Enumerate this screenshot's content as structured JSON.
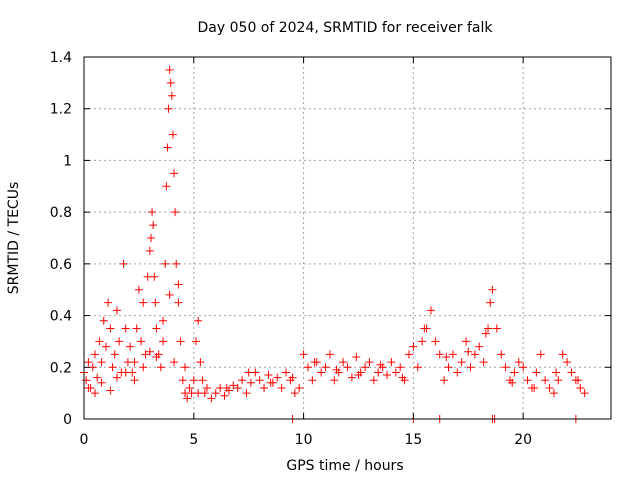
{
  "chart_data": {
    "type": "scatter",
    "title": "Day 050 of 2024, SRMTID for receiver falk",
    "xlabel": "GPS time / hours",
    "ylabel": "SRMTID / TECUs",
    "xlim": [
      0,
      24
    ],
    "ylim": [
      0,
      1.4
    ],
    "x_ticks": [
      0,
      5,
      10,
      15,
      20
    ],
    "x_tick_labels": [
      "0",
      "5",
      "10",
      "15",
      "20"
    ],
    "y_ticks": [
      0,
      0.2,
      0.4,
      0.6,
      0.8,
      1,
      1.2,
      1.4
    ],
    "y_tick_labels": [
      "0",
      "0.2",
      "0.4",
      "0.6",
      "0.8",
      "1",
      "1.2",
      "1.4"
    ],
    "grid": true,
    "marker": "plus",
    "marker_color": "#ff0000",
    "series": [
      {
        "name": "SRMTID",
        "x": [
          0.0,
          0.1,
          0.2,
          0.3,
          0.4,
          0.5,
          0.6,
          0.7,
          0.8,
          0.9,
          1.0,
          1.1,
          1.2,
          1.3,
          1.4,
          1.5,
          1.6,
          1.7,
          1.8,
          1.9,
          2.0,
          2.1,
          2.2,
          2.3,
          2.4,
          2.5,
          2.6,
          2.7,
          2.8,
          2.9,
          3.0,
          3.05,
          3.1,
          3.15,
          3.2,
          3.25,
          3.3,
          3.4,
          3.5,
          3.6,
          3.7,
          3.75,
          3.8,
          3.85,
          3.9,
          3.95,
          4.0,
          4.05,
          4.1,
          4.15,
          4.2,
          4.3,
          4.4,
          4.5,
          4.6,
          4.7,
          4.8,
          4.9,
          5.0,
          5.1,
          5.2,
          5.3,
          5.4,
          5.5,
          5.6,
          5.8,
          6.0,
          6.2,
          6.4,
          6.6,
          6.8,
          7.0,
          7.2,
          7.4,
          7.6,
          7.8,
          8.0,
          8.2,
          8.4,
          8.6,
          8.8,
          9.0,
          9.2,
          9.4,
          9.6,
          9.8,
          10.0,
          10.2,
          10.4,
          10.6,
          10.8,
          11.0,
          11.2,
          11.4,
          11.6,
          11.8,
          12.0,
          12.2,
          12.4,
          12.6,
          12.8,
          13.0,
          13.2,
          13.4,
          13.6,
          13.8,
          14.0,
          14.2,
          14.4,
          14.6,
          14.8,
          15.0,
          15.2,
          15.4,
          15.6,
          15.8,
          16.0,
          16.2,
          16.4,
          16.6,
          16.8,
          17.0,
          17.2,
          17.4,
          17.6,
          17.8,
          18.0,
          18.2,
          18.4,
          18.5,
          18.6,
          18.8,
          19.0,
          19.2,
          19.4,
          19.6,
          19.8,
          20.0,
          20.2,
          20.4,
          20.6,
          20.8,
          21.0,
          21.2,
          21.4,
          21.6,
          21.8,
          22.0,
          22.2,
          22.4,
          22.6,
          22.8,
          0.2,
          0.5,
          0.8,
          1.2,
          1.5,
          1.9,
          2.3,
          2.7,
          3.0,
          3.3,
          3.6,
          3.9,
          4.1,
          4.3,
          4.6,
          5.2,
          6.5,
          7.5,
          8.5,
          9.5,
          10.5,
          11.5,
          12.5,
          13.5,
          14.5,
          15.5,
          16.5,
          17.5,
          18.3,
          19.5,
          20.5,
          21.5,
          22.5,
          9.5,
          15.0,
          16.2,
          18.6,
          18.7,
          22.4
        ],
        "y": [
          0.18,
          0.15,
          0.22,
          0.12,
          0.2,
          0.25,
          0.16,
          0.3,
          0.22,
          0.38,
          0.28,
          0.45,
          0.35,
          0.2,
          0.25,
          0.42,
          0.3,
          0.18,
          0.6,
          0.35,
          0.22,
          0.28,
          0.18,
          0.15,
          0.35,
          0.5,
          0.3,
          0.45,
          0.25,
          0.55,
          0.65,
          0.7,
          0.8,
          0.75,
          0.55,
          0.45,
          0.35,
          0.25,
          0.2,
          0.3,
          0.6,
          0.9,
          1.05,
          1.2,
          1.35,
          1.3,
          1.25,
          1.1,
          0.95,
          0.8,
          0.6,
          0.45,
          0.3,
          0.15,
          0.1,
          0.08,
          0.12,
          0.1,
          0.15,
          0.3,
          0.38,
          0.22,
          0.15,
          0.1,
          0.12,
          0.08,
          0.1,
          0.12,
          0.09,
          0.11,
          0.13,
          0.12,
          0.15,
          0.1,
          0.14,
          0.18,
          0.15,
          0.12,
          0.17,
          0.14,
          0.16,
          0.12,
          0.18,
          0.15,
          0.1,
          0.12,
          0.25,
          0.2,
          0.15,
          0.22,
          0.18,
          0.2,
          0.25,
          0.15,
          0.18,
          0.22,
          0.2,
          0.16,
          0.24,
          0.18,
          0.2,
          0.22,
          0.15,
          0.18,
          0.2,
          0.17,
          0.22,
          0.18,
          0.2,
          0.15,
          0.25,
          0.28,
          0.2,
          0.3,
          0.35,
          0.42,
          0.3,
          0.25,
          0.15,
          0.2,
          0.25,
          0.18,
          0.22,
          0.3,
          0.2,
          0.25,
          0.28,
          0.22,
          0.35,
          0.45,
          0.5,
          0.35,
          0.25,
          0.2,
          0.15,
          0.18,
          0.22,
          0.2,
          0.15,
          0.12,
          0.18,
          0.25,
          0.15,
          0.12,
          0.1,
          0.15,
          0.25,
          0.22,
          0.18,
          0.15,
          0.12,
          0.1,
          0.12,
          0.1,
          0.14,
          0.11,
          0.16,
          0.18,
          0.22,
          0.2,
          0.26,
          0.24,
          0.38,
          0.48,
          0.22,
          0.52,
          0.2,
          0.1,
          0.12,
          0.18,
          0.14,
          0.16,
          0.22,
          0.19,
          0.17,
          0.21,
          0.16,
          0.35,
          0.24,
          0.26,
          0.33,
          0.14,
          0.12,
          0.18,
          0.15,
          0.0,
          0.0,
          0.0,
          0.0,
          0.0,
          0.0
        ]
      }
    ]
  }
}
